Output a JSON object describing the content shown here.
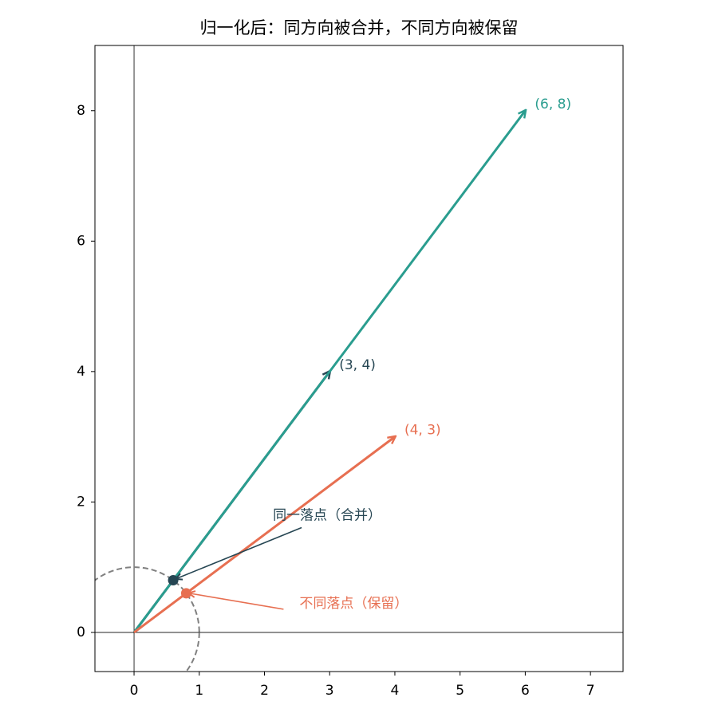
{
  "chart_data": {
    "type": "quiver",
    "title": "归一化后：同方向被合并，不同方向被保留",
    "xlim": [
      -0.6,
      7.5
    ],
    "ylim": [
      -0.6,
      9
    ],
    "xticks": [
      0,
      1,
      2,
      3,
      4,
      5,
      6,
      7
    ],
    "yticks": [
      0,
      2,
      4,
      6,
      8
    ],
    "circle_radius": 1,
    "vectors": [
      {
        "x": 3,
        "y": 4,
        "label": "(3, 4)",
        "color": "#264653"
      },
      {
        "x": 6,
        "y": 8,
        "label": "(6, 8)",
        "color": "#2a9d8f"
      },
      {
        "x": 4,
        "y": 3,
        "label": "(4, 3)",
        "color": "#e76f51"
      }
    ],
    "points": [
      {
        "x": 0.6,
        "y": 0.8,
        "color": "#264653",
        "annotation": "同一落点（合并）"
      },
      {
        "x": 0.8,
        "y": 0.6,
        "color": "#e76f51",
        "annotation": "不同落点（保留）"
      }
    ]
  }
}
